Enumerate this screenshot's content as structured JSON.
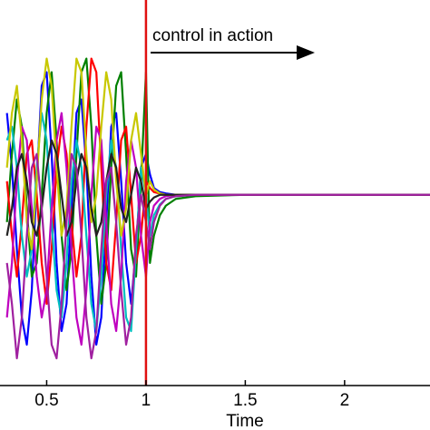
{
  "chart_data": {
    "type": "line",
    "xlabel": "Time",
    "annotation": "control in action",
    "xlim": [
      0.265,
      2.43
    ],
    "xticks": [
      0.5,
      1,
      1.5,
      2
    ],
    "ylim": [
      -1.4,
      1.43
    ],
    "vertical_line": {
      "x": 1,
      "color": "#e01010"
    },
    "x": [
      0.3,
      0.325,
      0.35,
      0.375,
      0.4,
      0.425,
      0.45,
      0.475,
      0.5,
      0.525,
      0.55,
      0.575,
      0.6,
      0.625,
      0.65,
      0.675,
      0.7,
      0.725,
      0.75,
      0.775,
      0.8,
      0.825,
      0.85,
      0.875,
      0.9,
      0.925,
      0.95,
      0.975,
      1.0,
      1.02,
      1.04,
      1.07,
      1.1,
      1.15,
      1.25,
      1.5,
      2.0,
      2.43
    ],
    "series": [
      {
        "color": "#0000ff",
        "values": [
          0.6,
          0.2,
          -0.4,
          -0.9,
          -1.1,
          -0.7,
          0.1,
          0.8,
          0.9,
          0.3,
          -0.5,
          -1.0,
          -0.8,
          -0.1,
          0.6,
          0.7,
          0.2,
          -0.6,
          -1.1,
          -0.9,
          -0.2,
          0.5,
          0.6,
          0.1,
          -0.5,
          -0.8,
          -0.4,
          0.2,
          0.3,
          0.15,
          0.05,
          0.02,
          0.01,
          0,
          0,
          0,
          0,
          0
        ]
      },
      {
        "color": "#008000",
        "values": [
          -0.2,
          0.3,
          0.7,
          0.5,
          -0.1,
          -0.6,
          -0.5,
          0.0,
          0.6,
          0.9,
          0.4,
          -0.3,
          -0.7,
          -0.4,
          0.3,
          0.9,
          1.0,
          0.5,
          -0.3,
          -0.8,
          -0.5,
          0.2,
          0.8,
          0.9,
          0.3,
          -0.4,
          -0.6,
          0.1,
          0.9,
          -0.5,
          -0.3,
          -0.15,
          -0.08,
          -0.03,
          -0.01,
          0,
          0,
          0
        ]
      },
      {
        "color": "#ff0000",
        "values": [
          0.1,
          -0.3,
          -0.6,
          -0.2,
          0.3,
          0.4,
          0.0,
          -0.5,
          -0.8,
          -0.4,
          0.2,
          0.5,
          0.3,
          -0.2,
          -0.6,
          -0.3,
          0.5,
          1.0,
          0.9,
          0.2,
          -0.5,
          -0.7,
          -0.2,
          0.4,
          0.5,
          0.0,
          -0.5,
          -0.3,
          0.1,
          0.05,
          0.02,
          0.01,
          0,
          0,
          0,
          0,
          0,
          0
        ]
      },
      {
        "color": "#00bfbf",
        "values": [
          0.4,
          0.5,
          0.2,
          -0.3,
          -0.6,
          -0.4,
          0.2,
          0.6,
          0.4,
          -0.2,
          -0.7,
          -0.9,
          -0.5,
          0.1,
          0.4,
          0.2,
          -0.3,
          -0.8,
          -1.0,
          -0.6,
          0.0,
          0.4,
          0.2,
          -0.4,
          -0.9,
          -1.0,
          -0.4,
          0.2,
          0.0,
          -0.3,
          -0.15,
          -0.07,
          -0.03,
          -0.01,
          0,
          0,
          0,
          0
        ]
      },
      {
        "color": "#bf00bf",
        "values": [
          -0.9,
          -0.5,
          0.1,
          0.5,
          0.4,
          -0.1,
          -0.6,
          -0.9,
          -0.7,
          -0.1,
          0.4,
          0.6,
          0.2,
          -0.4,
          -0.9,
          -1.1,
          -0.7,
          0.0,
          0.5,
          0.4,
          -0.2,
          -0.8,
          -1.0,
          -0.6,
          0.1,
          0.4,
          0.2,
          -0.3,
          -0.6,
          -0.2,
          -0.08,
          -0.03,
          -0.01,
          0,
          0,
          0,
          0,
          0
        ]
      },
      {
        "color": "#c8c800",
        "values": [
          0.2,
          0.6,
          0.8,
          0.4,
          -0.2,
          -0.4,
          0.1,
          0.7,
          1.0,
          0.8,
          0.2,
          -0.3,
          -0.1,
          0.5,
          1.0,
          0.9,
          0.3,
          -0.2,
          0.0,
          0.5,
          0.9,
          0.7,
          0.1,
          -0.3,
          -0.1,
          0.4,
          0.6,
          0.3,
          0.0,
          0.1,
          0.04,
          0.01,
          0,
          0,
          0,
          0,
          0,
          0
        ]
      },
      {
        "color": "#222222",
        "values": [
          -0.3,
          -0.1,
          0.2,
          0.3,
          0.1,
          -0.2,
          -0.3,
          -0.1,
          0.2,
          0.4,
          0.3,
          0.0,
          -0.3,
          -0.2,
          0.1,
          0.3,
          0.2,
          -0.1,
          -0.3,
          -0.2,
          0.1,
          0.3,
          0.2,
          -0.1,
          -0.2,
          0.0,
          0.2,
          0.1,
          -0.1,
          -0.05,
          -0.02,
          0,
          0,
          0,
          0,
          0,
          0,
          0
        ]
      },
      {
        "color": "#a020a0",
        "values": [
          -0.5,
          -0.8,
          -1.2,
          -0.9,
          -0.3,
          0.2,
          0.3,
          -0.1,
          -0.6,
          -1.1,
          -1.2,
          -0.8,
          -0.2,
          0.3,
          0.2,
          -0.3,
          -0.9,
          -1.2,
          -1.0,
          -0.4,
          0.1,
          0.2,
          -0.2,
          -0.7,
          -1.1,
          -0.9,
          -0.3,
          0.0,
          -0.2,
          -0.4,
          -0.2,
          -0.08,
          -0.03,
          -0.01,
          0,
          0,
          0,
          0
        ]
      }
    ]
  }
}
